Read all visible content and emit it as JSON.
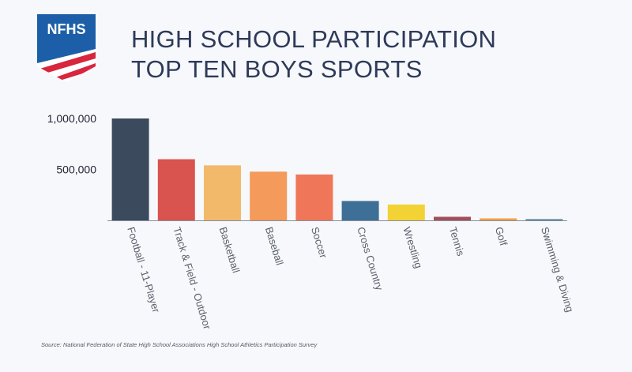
{
  "header": {
    "logo_text": "NFHS",
    "title_line1": "HIGH SCHOOL PARTICIPATION",
    "title_line2": "TOP TEN BOYS SPORTS"
  },
  "source": "Source: National Federation of State High School Associations High School Athletics Participation Survey",
  "chart_data": {
    "type": "bar",
    "title": "HIGH SCHOOL PARTICIPATION TOP TEN BOYS SPORTS",
    "xlabel": "",
    "ylabel": "",
    "categories": [
      "Football - 11-Player",
      "Track & Field - Outdoor",
      "Basketball",
      "Baseball",
      "Soccer",
      "Cross Country",
      "Wrestling",
      "Tennis",
      "Golf",
      "Swimming & Diving"
    ],
    "values": [
      1000000,
      600000,
      540000,
      478000,
      450000,
      190000,
      155000,
      35000,
      20000,
      8000
    ],
    "colors": [
      "#3b4a5c",
      "#d9534f",
      "#f2b96b",
      "#f49a5a",
      "#f0765a",
      "#3e6f96",
      "#f2d234",
      "#a0505c",
      "#f2a24a",
      "#4e7f8e"
    ],
    "ylim": [
      0,
      1000000
    ],
    "yticks": [
      500000,
      1000000
    ],
    "ytick_labels": [
      "500,000",
      "1,000,000"
    ],
    "grid": false,
    "legend": "none"
  }
}
